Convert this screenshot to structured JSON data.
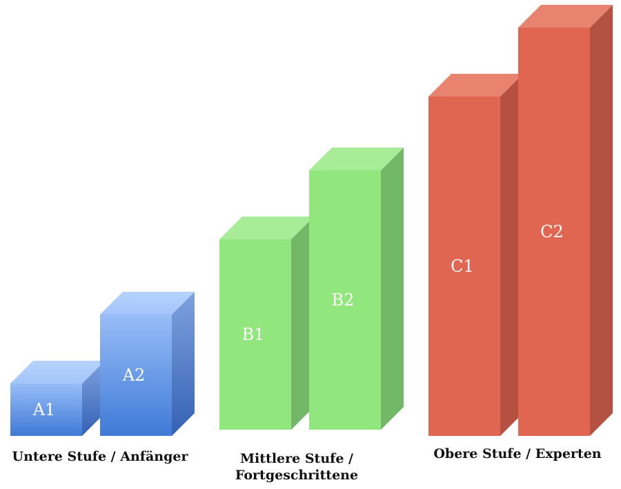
{
  "chart_data": {
    "type": "bar",
    "categories": [
      "A1",
      "A2",
      "B1",
      "B2",
      "C1",
      "C2"
    ],
    "values": [
      1,
      2,
      3,
      4,
      5,
      6
    ],
    "groups": [
      {
        "label_lines": [
          "Untere Stufe / Anfänger"
        ],
        "bars": [
          "A1",
          "A2"
        ],
        "color": "#7fa8ea"
      },
      {
        "label_lines": [
          "Mittlere Stufe /",
          "Fortgeschrittene"
        ],
        "bars": [
          "B1",
          "B2"
        ],
        "color": "#92e67e"
      },
      {
        "label_lines": [
          "Obere Stufe / Experten"
        ],
        "bars": [
          "C1",
          "C2"
        ],
        "color": "#e06651"
      }
    ],
    "title": "",
    "xlabel": "",
    "ylabel": "",
    "grid": false,
    "legend": "none"
  }
}
